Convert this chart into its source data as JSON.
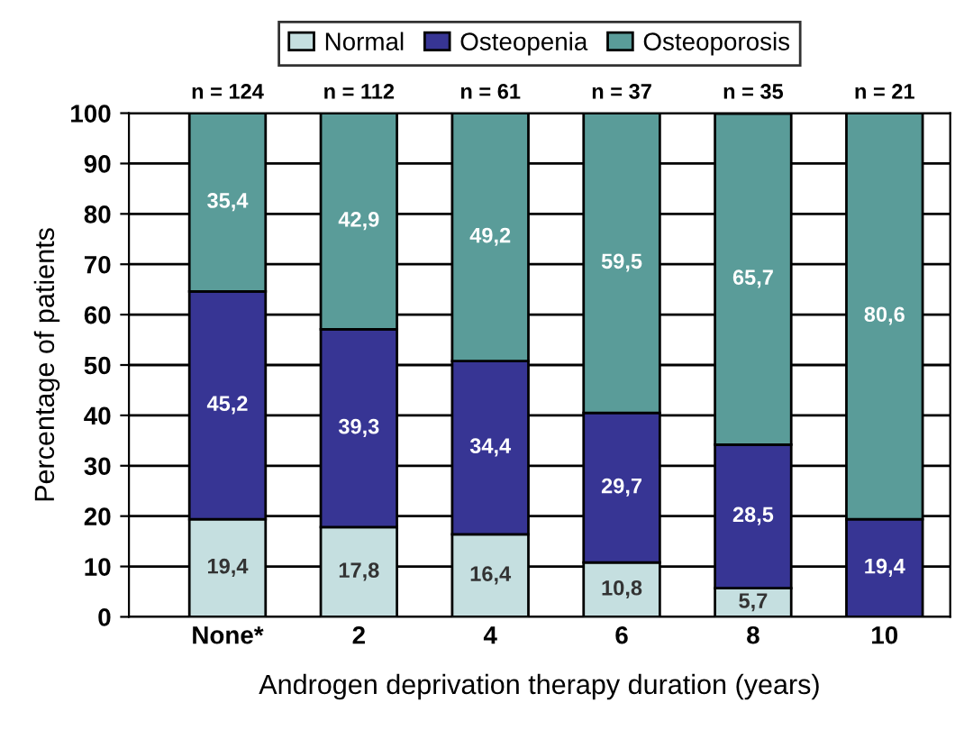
{
  "chart_data": {
    "type": "bar",
    "stacked": true,
    "xlabel": "Androgen deprivation therapy duration (years)",
    "ylabel": "Percentage of patients",
    "categories": [
      "None*",
      "2",
      "4",
      "6",
      "8",
      "10"
    ],
    "series": [
      {
        "name": "Normal",
        "color": "#c5dfe0",
        "values": [
          19.4,
          17.8,
          16.4,
          10.8,
          5.7,
          0
        ],
        "value_labels": [
          "19,4",
          "17,8",
          "16,4",
          "10,8",
          "5,7",
          null
        ]
      },
      {
        "name": "Osteopenia",
        "color": "#373594",
        "values": [
          45.2,
          39.3,
          34.4,
          29.7,
          28.5,
          19.4
        ],
        "value_labels": [
          "45,2",
          "39,3",
          "34,4",
          "29,7",
          "28,5",
          "19,4"
        ]
      },
      {
        "name": "Osteoporosis",
        "color": "#5a9c99",
        "values": [
          35.4,
          42.9,
          49.2,
          59.5,
          65.7,
          80.6
        ],
        "value_labels": [
          "35,4",
          "42,9",
          "49,2",
          "59,5",
          "65,7",
          "80,6"
        ]
      }
    ],
    "ylim": [
      0,
      100
    ],
    "yticks": [
      0,
      10,
      20,
      30,
      40,
      50,
      60,
      70,
      80,
      90,
      100
    ],
    "grid": "y",
    "legend": "top",
    "annotations": [
      {
        "text": "n = 124",
        "x": "None*",
        "y": 100
      },
      {
        "text": "n = 112",
        "x": "2",
        "y": 100
      },
      {
        "text": "n = 61",
        "x": "4",
        "y": 100
      },
      {
        "text": "n = 37",
        "x": "6",
        "y": 100
      },
      {
        "text": "n = 35",
        "x": "8",
        "y": 100
      },
      {
        "text": "n = 21",
        "x": "10",
        "y": 100
      }
    ]
  }
}
